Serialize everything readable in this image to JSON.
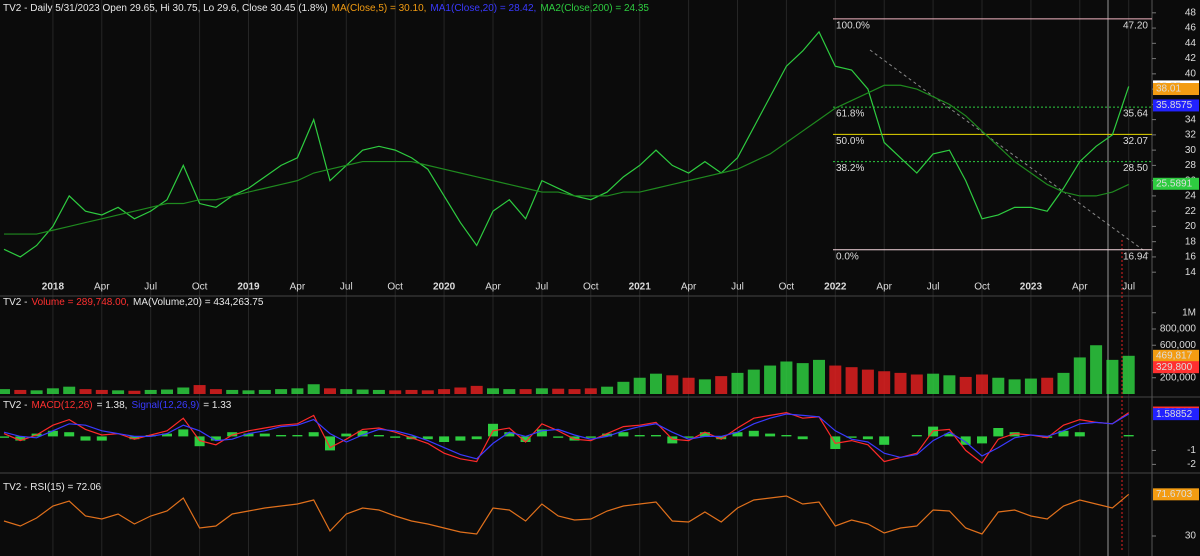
{
  "chart_data": [
    {
      "type": "line",
      "header": [
        {
          "text": "TV2 - Daily 5/31/2023 Open 29.65, Hi 30.75, Lo 29.6, Close 30.45 (1.8%)",
          "color": "#e8e8e8"
        },
        {
          "text": "MA(Close,5) = 30.10,",
          "color": "#f39c12"
        },
        {
          "text": "MA1(Close,20) = 28.42,",
          "color": "#3a3aff"
        },
        {
          "text": "MA2(Close,200) = 24.35",
          "color": "#2ecc40"
        }
      ],
      "categories": [
        null,
        null,
        null,
        "2018",
        null,
        null,
        "Apr",
        null,
        null,
        "Jul",
        null,
        null,
        "Oct",
        null,
        null,
        "2019",
        null,
        null,
        "Apr",
        null,
        null,
        "Jul",
        null,
        null,
        "Oct",
        null,
        null,
        "2020",
        null,
        null,
        "Apr",
        null,
        null,
        "Jul",
        null,
        null,
        "Oct",
        null,
        null,
        "2021",
        null,
        null,
        "Apr",
        null,
        null,
        "Jul",
        null,
        null,
        "Oct",
        null,
        null,
        "2022",
        null,
        null,
        "Apr",
        null,
        null,
        "Jul",
        null,
        null,
        "Oct",
        null,
        null,
        "2023",
        null,
        null,
        "Apr",
        null,
        null,
        "Jul"
      ],
      "series": [
        {
          "color": "#2ecc40",
          "values": [
            17,
            16,
            17.5,
            20,
            24,
            22,
            21.5,
            22.5,
            21,
            22,
            23.5,
            28,
            23,
            22.5,
            24,
            25,
            26.5,
            28,
            29,
            34,
            26,
            28,
            30,
            30.5,
            30,
            29,
            27.5,
            24,
            20.5,
            17.5,
            22,
            23.5,
            21,
            26,
            25,
            24,
            23.5,
            24.5,
            26.5,
            28,
            30,
            28,
            27,
            28.5,
            27,
            29,
            33,
            37,
            41,
            43,
            45.5,
            41,
            40.5,
            38,
            31,
            29,
            27,
            29.5,
            30,
            26,
            21,
            21.5,
            22.5,
            22.5,
            22,
            25,
            28.5,
            30.5,
            32,
            38.35
          ]
        },
        {
          "color": "#1f8a1f",
          "values": [
            19,
            19,
            19,
            19.5,
            20,
            20.5,
            21,
            21.5,
            22,
            22.5,
            23,
            23,
            23.5,
            23.5,
            24,
            24.5,
            25,
            25.5,
            26,
            27,
            27.5,
            28,
            28.5,
            28.5,
            28.5,
            28.5,
            28,
            27.5,
            27,
            26.5,
            26,
            25.5,
            25,
            24.5,
            24.5,
            24,
            24,
            24,
            24.5,
            24.5,
            25,
            25.5,
            26,
            26.5,
            27,
            27.5,
            28.5,
            29.5,
            31,
            32.5,
            34,
            35.5,
            36.5,
            37.5,
            38.5,
            38.5,
            38,
            37,
            36,
            34.5,
            32.5,
            30.5,
            28.5,
            27,
            25.5,
            24.5,
            24,
            24,
            24.5,
            25.5
          ]
        }
      ],
      "ylim": [
        13.5,
        48.5
      ],
      "yticks": [
        14,
        16,
        18,
        20,
        22,
        24,
        26,
        28,
        30,
        32,
        34,
        36,
        38,
        40,
        42,
        44,
        46,
        48
      ],
      "grid": true,
      "fib": {
        "labels": [
          "100.0%",
          "61.8%",
          "50.0%",
          "38.2%",
          "0.0%"
        ],
        "values": [
          47.2,
          35.64,
          32.07,
          28.5,
          16.94
        ],
        "value_labels": [
          "47.20",
          "35.64",
          "32.07",
          "28.50",
          "16.94"
        ],
        "colors": [
          "#f4b6c2",
          "#2ecc40",
          "#e6d800",
          "#2ecc40",
          "#f4d6dc"
        ]
      },
      "tags": [
        {
          "value": 38.35,
          "color": "#ffffff"
        },
        {
          "value": 38.01,
          "color": "#f39c12"
        },
        {
          "value": 35.8575,
          "color": "#2222ff"
        },
        {
          "value": 25.5891,
          "color": "#2ecc40"
        }
      ]
    },
    {
      "type": "bar",
      "header": [
        {
          "text": "TV2 -",
          "color": "#e8e8e8"
        },
        {
          "text": "Volume = 289,748.00,",
          "color": "#ff3030"
        },
        {
          "text": "MA(Volume,20) = 434,263.75",
          "color": "#e8e8e8"
        }
      ],
      "values": [
        60000,
        50000,
        45000,
        70000,
        90000,
        60000,
        50000,
        45000,
        40000,
        50000,
        55000,
        80000,
        110000,
        60000,
        50000,
        45000,
        50000,
        60000,
        70000,
        120000,
        70000,
        60000,
        55000,
        50000,
        45000,
        50000,
        45000,
        60000,
        80000,
        100000,
        70000,
        60000,
        60000,
        70000,
        65000,
        60000,
        70000,
        90000,
        150000,
        200000,
        250000,
        230000,
        200000,
        180000,
        220000,
        260000,
        300000,
        350000,
        400000,
        380000,
        420000,
        350000,
        330000,
        300000,
        280000,
        260000,
        240000,
        250000,
        230000,
        210000,
        240000,
        200000,
        180000,
        190000,
        200000,
        260000,
        450000,
        600000,
        420000,
        470000
      ],
      "ylim": [
        0,
        1100000
      ],
      "yticks": [
        {
          "value": 200000,
          "label": "200,000"
        },
        {
          "value": 600000,
          "label": "600,000"
        },
        {
          "value": 800000,
          "label": "800,000"
        },
        {
          "value": 1000000,
          "label": "1M"
        }
      ],
      "tags": [
        {
          "value": 469817,
          "label": "469,817",
          "color": "#f39c12"
        },
        {
          "value": 329800,
          "label": "329,800",
          "color": "#ff3030"
        }
      ]
    },
    {
      "type": "macd",
      "header": [
        {
          "text": "TV2 -",
          "color": "#e8e8e8"
        },
        {
          "text": "MACD(12,26)",
          "color": "#ff3030"
        },
        {
          "text": "= 1.38,",
          "color": "#e8e8e8"
        },
        {
          "text": "Signal(12,26,9)",
          "color": "#3a3aff"
        },
        {
          "text": "= 1.33",
          "color": "#e8e8e8"
        }
      ],
      "series": [
        {
          "color": "#ff2a2a",
          "values": [
            0.2,
            -0.3,
            0.1,
            0.8,
            1.2,
            0.5,
            0.1,
            0.2,
            -0.2,
            0.1,
            0.4,
            1.3,
            -0.3,
            -0.6,
            0.1,
            0.4,
            0.6,
            0.8,
            0.9,
            1.5,
            -0.8,
            -0.2,
            0.5,
            0.6,
            0.3,
            -0.1,
            -0.5,
            -1.2,
            -1.6,
            -1.8,
            0.4,
            0.6,
            -0.4,
            0.9,
            0.4,
            -0.2,
            -0.3,
            0.2,
            0.7,
            0.8,
            1.0,
            -0.2,
            -0.3,
            0.3,
            -0.2,
            0.6,
            1.3,
            1.5,
            1.7,
            1.3,
            1.4,
            -0.5,
            -0.3,
            -0.6,
            -1.8,
            -1.5,
            -1.2,
            0.4,
            0.5,
            -1.0,
            -1.9,
            -0.2,
            0.2,
            0.1,
            -0.1,
            0.8,
            1.2,
            1.0,
            0.9,
            1.7
          ]
        },
        {
          "color": "#3a3aff",
          "values": [
            0.3,
            0.0,
            -0.1,
            0.4,
            0.9,
            0.8,
            0.4,
            0.2,
            0.0,
            0.0,
            0.2,
            0.8,
            0.4,
            -0.3,
            -0.2,
            0.2,
            0.4,
            0.7,
            0.8,
            1.2,
            0.2,
            -0.4,
            0.1,
            0.5,
            0.4,
            0.1,
            -0.3,
            -0.8,
            -1.3,
            -1.6,
            -0.5,
            0.3,
            0.0,
            0.4,
            0.5,
            0.1,
            -0.2,
            0.0,
            0.4,
            0.7,
            0.9,
            0.3,
            -0.2,
            0.0,
            0.0,
            0.3,
            0.9,
            1.3,
            1.6,
            1.5,
            1.4,
            0.4,
            -0.2,
            -0.4,
            -1.2,
            -1.5,
            -1.3,
            -0.3,
            0.3,
            -0.4,
            -1.4,
            -0.8,
            -0.1,
            0.1,
            0.0,
            0.4,
            0.9,
            1.0,
            0.9,
            1.6
          ]
        }
      ],
      "histogram": {
        "color": "#2ecc40",
        "values": [
          -0.1,
          -0.3,
          0.2,
          0.4,
          0.3,
          -0.3,
          -0.3,
          0,
          -0.2,
          0.1,
          0.2,
          0.5,
          -0.7,
          -0.3,
          0.3,
          0.2,
          0.2,
          0.1,
          0.1,
          0.3,
          -1.0,
          0.2,
          0.4,
          0.1,
          -0.1,
          -0.2,
          -0.2,
          -0.4,
          -0.3,
          -0.2,
          0.9,
          0.3,
          -0.4,
          0.5,
          -0.1,
          -0.3,
          -0.1,
          0.2,
          0.3,
          0.1,
          0.1,
          -0.5,
          -0.1,
          0.3,
          -0.2,
          0.3,
          0.4,
          0.2,
          0.1,
          -0.2,
          0,
          -0.9,
          -0.1,
          -0.2,
          -0.6,
          0,
          0.1,
          0.7,
          0.2,
          -0.6,
          -0.5,
          0.6,
          0.3,
          0,
          -0.1,
          0.4,
          0.3,
          0,
          0,
          0.1
        ]
      },
      "ylim": [
        -2.4,
        2.6
      ],
      "yticks": [
        -2,
        -1
      ],
      "tags": [
        {
          "value": 1.70548,
          "color": "#ff3030"
        },
        {
          "value": 1.58852,
          "color": "#2222ff"
        }
      ]
    },
    {
      "type": "line",
      "header": [
        {
          "text": "TV2 - RSI(15) = 72.06",
          "color": "#e8e8e8"
        }
      ],
      "series": [
        {
          "color": "#e0701c",
          "values": [
            45,
            40,
            48,
            60,
            65,
            50,
            47,
            52,
            42,
            50,
            55,
            68,
            38,
            40,
            52,
            55,
            58,
            60,
            62,
            66,
            35,
            52,
            58,
            56,
            50,
            45,
            42,
            38,
            34,
            32,
            58,
            56,
            45,
            62,
            50,
            46,
            47,
            55,
            60,
            62,
            64,
            45,
            44,
            54,
            44,
            58,
            66,
            68,
            70,
            62,
            64,
            40,
            46,
            42,
            33,
            38,
            40,
            56,
            55,
            38,
            32,
            54,
            56,
            50,
            47,
            60,
            66,
            62,
            58,
            71.67
          ]
        }
      ],
      "ylim": [
        14,
        91
      ],
      "yticks": [
        30
      ],
      "tags": [
        {
          "value": 71.6703,
          "color": "#f39c12"
        }
      ]
    }
  ]
}
